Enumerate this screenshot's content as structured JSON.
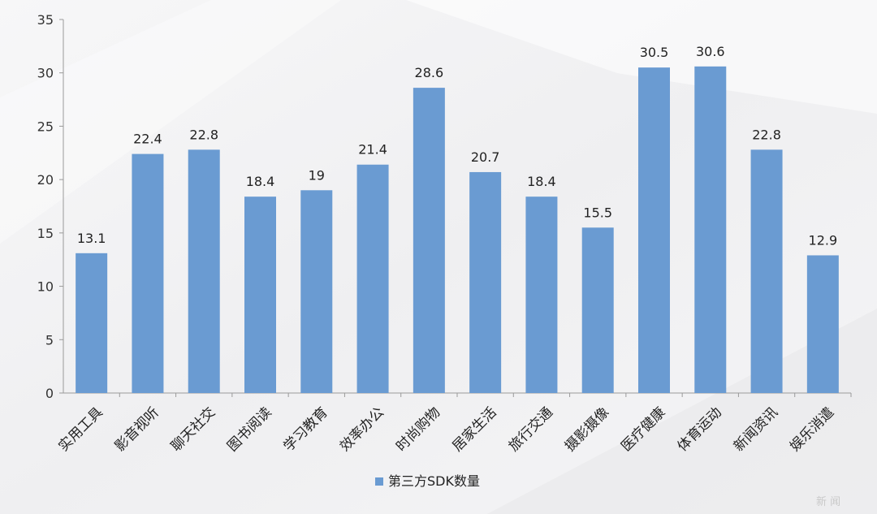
{
  "chart_data": {
    "type": "bar",
    "categories": [
      "实用工具",
      "影音视听",
      "聊天社交",
      "图书阅读",
      "学习教育",
      "效率办公",
      "时尚购物",
      "居家生活",
      "旅行交通",
      "摄影摄像",
      "医疗健康",
      "体育运动",
      "新闻资讯",
      "娱乐消遣"
    ],
    "series": [
      {
        "name": "第三方SDK数量",
        "values": [
          13.1,
          22.4,
          22.8,
          18.4,
          19,
          21.4,
          28.6,
          20.7,
          18.4,
          15.5,
          30.5,
          30.6,
          22.8,
          12.9
        ],
        "color": "#6a9bd2"
      }
    ],
    "data_labels": [
      "13.1",
      "22.4",
      "22.8",
      "18.4",
      "19",
      "21.4",
      "28.6",
      "20.7",
      "18.4",
      "15.5",
      "30.5",
      "30.6",
      "22.8",
      "12.9"
    ],
    "yticks": [
      0,
      5,
      10,
      15,
      20,
      25,
      30,
      35
    ],
    "ylim": [
      0,
      35
    ],
    "title": "",
    "xlabel": "",
    "ylabel": "",
    "grid": false,
    "legend_position": "bottom-left"
  },
  "watermark_text": "新 闻"
}
